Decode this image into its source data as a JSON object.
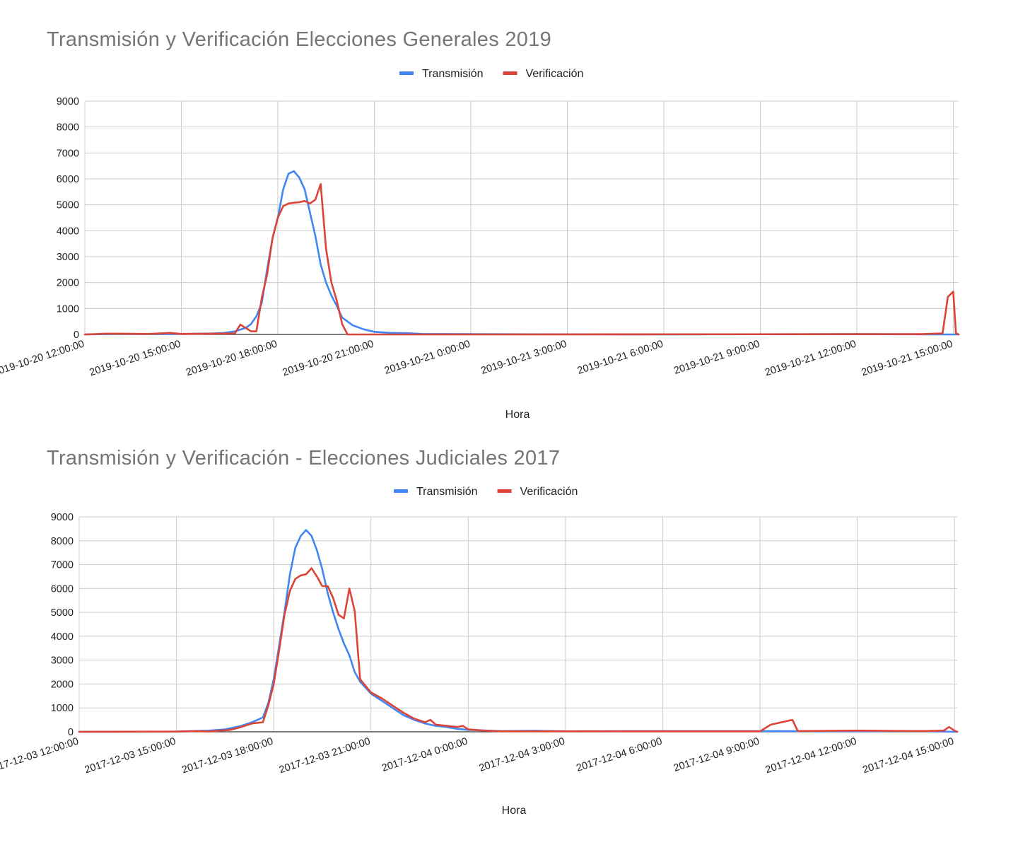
{
  "colors": {
    "transmision": "#4285F4",
    "verificacion": "#DB4437",
    "grid": "#CCCCCC",
    "axis": "#333333"
  },
  "chart_data": [
    {
      "type": "line",
      "title": "Transmisión y Verificación Elecciones Generales 2019",
      "xlabel": "Hora",
      "ylabel": "",
      "ylim": [
        0,
        9000
      ],
      "yticks": [
        "0",
        "1000",
        "2000",
        "3000",
        "4000",
        "5000",
        "6000",
        "7000",
        "8000",
        "9000"
      ],
      "xticks": [
        "2019-10-20 12:00:00",
        "2019-10-20 15:00:00",
        "2019-10-20 18:00:00",
        "2019-10-20 21:00:00",
        "2019-10-21 0:00:00",
        "2019-10-21 3:00:00",
        "2019-10-21 6:00:00",
        "2019-10-21 9:00:00",
        "2019-10-21 12:00:00",
        "2019-10-21 15:00:00"
      ],
      "xlim": [
        "2019-10-20 12:00:00",
        "2019-10-21 15:10:00"
      ],
      "grid": true,
      "legend_position": "top",
      "series": [
        {
          "name": "Transmisión",
          "color": "#4285F4",
          "points": [
            [
              "2019-10-20 12:00:00",
              0
            ],
            [
              "2019-10-20 13:00:00",
              20
            ],
            [
              "2019-10-20 14:00:00",
              10
            ],
            [
              "2019-10-20 15:00:00",
              20
            ],
            [
              "2019-10-20 16:00:00",
              40
            ],
            [
              "2019-10-20 16:20:00",
              60
            ],
            [
              "2019-10-20 16:40:00",
              120
            ],
            [
              "2019-10-20 17:00:00",
              250
            ],
            [
              "2019-10-20 17:10:00",
              400
            ],
            [
              "2019-10-20 17:20:00",
              700
            ],
            [
              "2019-10-20 17:30:00",
              1200
            ],
            [
              "2019-10-20 17:40:00",
              2500
            ],
            [
              "2019-10-20 17:50:00",
              3700
            ],
            [
              "2019-10-20 18:00:00",
              4500
            ],
            [
              "2019-10-20 18:10:00",
              5600
            ],
            [
              "2019-10-20 18:20:00",
              6200
            ],
            [
              "2019-10-20 18:30:00",
              6300
            ],
            [
              "2019-10-20 18:40:00",
              6050
            ],
            [
              "2019-10-20 18:50:00",
              5600
            ],
            [
              "2019-10-20 19:00:00",
              4700
            ],
            [
              "2019-10-20 19:10:00",
              3800
            ],
            [
              "2019-10-20 19:20:00",
              2700
            ],
            [
              "2019-10-20 19:30:00",
              2000
            ],
            [
              "2019-10-20 19:40:00",
              1500
            ],
            [
              "2019-10-20 19:50:00",
              1100
            ],
            [
              "2019-10-20 20:00:00",
              650
            ],
            [
              "2019-10-20 20:20:00",
              350
            ],
            [
              "2019-10-20 20:40:00",
              200
            ],
            [
              "2019-10-20 21:00:00",
              100
            ],
            [
              "2019-10-20 21:30:00",
              60
            ],
            [
              "2019-10-20 22:00:00",
              50
            ],
            [
              "2019-10-20 22:30:00",
              20
            ],
            [
              "2019-10-21 0:00:00",
              10
            ],
            [
              "2019-10-21 6:00:00",
              0
            ],
            [
              "2019-10-21 12:00:00",
              10
            ],
            [
              "2019-10-21 15:00:00",
              0
            ],
            [
              "2019-10-21 15:10:00",
              0
            ]
          ]
        },
        {
          "name": "Verificación",
          "color": "#DB4437",
          "points": [
            [
              "2019-10-20 12:00:00",
              0
            ],
            [
              "2019-10-20 12:40:00",
              30
            ],
            [
              "2019-10-20 13:00:00",
              30
            ],
            [
              "2019-10-20 14:00:00",
              20
            ],
            [
              "2019-10-20 14:40:00",
              60
            ],
            [
              "2019-10-20 15:00:00",
              20
            ],
            [
              "2019-10-20 16:00:00",
              30
            ],
            [
              "2019-10-20 16:40:00",
              40
            ],
            [
              "2019-10-20 16:50:00",
              380
            ],
            [
              "2019-10-20 17:00:00",
              250
            ],
            [
              "2019-10-20 17:10:00",
              120
            ],
            [
              "2019-10-20 17:20:00",
              120
            ],
            [
              "2019-10-20 17:30:00",
              1400
            ],
            [
              "2019-10-20 17:40:00",
              2300
            ],
            [
              "2019-10-20 17:50:00",
              3700
            ],
            [
              "2019-10-20 18:00:00",
              4500
            ],
            [
              "2019-10-20 18:10:00",
              4950
            ],
            [
              "2019-10-20 18:20:00",
              5050
            ],
            [
              "2019-10-20 18:30:00",
              5080
            ],
            [
              "2019-10-20 18:40:00",
              5100
            ],
            [
              "2019-10-20 18:50:00",
              5150
            ],
            [
              "2019-10-20 19:00:00",
              5050
            ],
            [
              "2019-10-20 19:10:00",
              5200
            ],
            [
              "2019-10-20 19:20:00",
              5800
            ],
            [
              "2019-10-20 19:30:00",
              3300
            ],
            [
              "2019-10-20 19:40:00",
              2000
            ],
            [
              "2019-10-20 19:50:00",
              1300
            ],
            [
              "2019-10-20 20:00:00",
              400
            ],
            [
              "2019-10-20 20:10:00",
              0
            ],
            [
              "2019-10-21 0:00:00",
              0
            ],
            [
              "2019-10-21 12:00:00",
              10
            ],
            [
              "2019-10-21 14:00:00",
              10
            ],
            [
              "2019-10-21 14:40:00",
              40
            ],
            [
              "2019-10-21 14:50:00",
              1450
            ],
            [
              "2019-10-21 15:00:00",
              1650
            ],
            [
              "2019-10-21 15:05:00",
              50
            ],
            [
              "2019-10-21 15:10:00",
              0
            ]
          ]
        }
      ]
    },
    {
      "type": "line",
      "title": "Transmisión y Verificación - Elecciones Judiciales 2017",
      "xlabel": "Hora",
      "ylabel": "",
      "ylim": [
        0,
        9000
      ],
      "yticks": [
        "0",
        "1000",
        "2000",
        "3000",
        "4000",
        "5000",
        "6000",
        "7000",
        "8000",
        "9000"
      ],
      "xticks": [
        "2017-12-03 12:00:00",
        "2017-12-03 15:00:00",
        "2017-12-03 18:00:00",
        "2017-12-03 21:00:00",
        "2017-12-04 0:00:00",
        "2017-12-04 3:00:00",
        "2017-12-04 6:00:00",
        "2017-12-04 9:00:00",
        "2017-12-04 12:00:00",
        "2017-12-04 15:00:00"
      ],
      "xlim": [
        "2017-12-03 12:00:00",
        "2017-12-04 15:05:00"
      ],
      "grid": true,
      "legend_position": "top",
      "series": [
        {
          "name": "Transmisión",
          "color": "#4285F4",
          "points": [
            [
              "2017-12-03 12:00:00",
              0
            ],
            [
              "2017-12-03 15:00:00",
              10
            ],
            [
              "2017-12-03 16:00:00",
              50
            ],
            [
              "2017-12-03 16:30:00",
              100
            ],
            [
              "2017-12-03 17:00:00",
              250
            ],
            [
              "2017-12-03 17:20:00",
              400
            ],
            [
              "2017-12-03 17:40:00",
              600
            ],
            [
              "2017-12-03 17:50:00",
              1200
            ],
            [
              "2017-12-03 18:00:00",
              2200
            ],
            [
              "2017-12-03 18:10:00",
              3600
            ],
            [
              "2017-12-03 18:20:00",
              5000
            ],
            [
              "2017-12-03 18:30:00",
              6600
            ],
            [
              "2017-12-03 18:40:00",
              7700
            ],
            [
              "2017-12-03 18:50:00",
              8200
            ],
            [
              "2017-12-03 19:00:00",
              8450
            ],
            [
              "2017-12-03 19:10:00",
              8200
            ],
            [
              "2017-12-03 19:20:00",
              7600
            ],
            [
              "2017-12-03 19:30:00",
              6800
            ],
            [
              "2017-12-03 19:40:00",
              5800
            ],
            [
              "2017-12-03 19:50:00",
              5000
            ],
            [
              "2017-12-03 20:00:00",
              4300
            ],
            [
              "2017-12-03 20:10:00",
              3700
            ],
            [
              "2017-12-03 20:20:00",
              3200
            ],
            [
              "2017-12-03 20:30:00",
              2500
            ],
            [
              "2017-12-03 20:40:00",
              2100
            ],
            [
              "2017-12-03 21:00:00",
              1600
            ],
            [
              "2017-12-03 21:20:00",
              1300
            ],
            [
              "2017-12-03 21:40:00",
              1000
            ],
            [
              "2017-12-03 22:00:00",
              700
            ],
            [
              "2017-12-03 22:20:00",
              500
            ],
            [
              "2017-12-03 22:40:00",
              350
            ],
            [
              "2017-12-03 23:00:00",
              250
            ],
            [
              "2017-12-03 23:20:00",
              200
            ],
            [
              "2017-12-03 23:40:00",
              120
            ],
            [
              "2017-12-04 0:00:00",
              80
            ],
            [
              "2017-12-04 0:30:00",
              60
            ],
            [
              "2017-12-04 1:00:00",
              30
            ],
            [
              "2017-12-04 2:00:00",
              40
            ],
            [
              "2017-12-04 3:00:00",
              20
            ],
            [
              "2017-12-04 6:00:00",
              30
            ],
            [
              "2017-12-04 9:00:00",
              30
            ],
            [
              "2017-12-04 12:00:00",
              20
            ],
            [
              "2017-12-04 14:00:00",
              30
            ],
            [
              "2017-12-04 15:00:00",
              0
            ],
            [
              "2017-12-04 15:05:00",
              0
            ]
          ]
        },
        {
          "name": "Verificación",
          "color": "#DB4437",
          "points": [
            [
              "2017-12-03 12:00:00",
              0
            ],
            [
              "2017-12-03 15:00:00",
              10
            ],
            [
              "2017-12-03 15:40:00",
              30
            ],
            [
              "2017-12-03 16:00:00",
              10
            ],
            [
              "2017-12-03 16:20:00",
              50
            ],
            [
              "2017-12-03 16:40:00",
              80
            ],
            [
              "2017-12-03 17:00:00",
              200
            ],
            [
              "2017-12-03 17:20:00",
              350
            ],
            [
              "2017-12-03 17:40:00",
              400
            ],
            [
              "2017-12-03 17:50:00",
              1100
            ],
            [
              "2017-12-03 18:00:00",
              2000
            ],
            [
              "2017-12-03 18:10:00",
              3400
            ],
            [
              "2017-12-03 18:20:00",
              4900
            ],
            [
              "2017-12-03 18:30:00",
              5900
            ],
            [
              "2017-12-03 18:40:00",
              6400
            ],
            [
              "2017-12-03 18:50:00",
              6550
            ],
            [
              "2017-12-03 19:00:00",
              6600
            ],
            [
              "2017-12-03 19:10:00",
              6850
            ],
            [
              "2017-12-03 19:20:00",
              6500
            ],
            [
              "2017-12-03 19:30:00",
              6100
            ],
            [
              "2017-12-03 19:40:00",
              6100
            ],
            [
              "2017-12-03 19:50:00",
              5600
            ],
            [
              "2017-12-03 20:00:00",
              4900
            ],
            [
              "2017-12-03 20:10:00",
              4750
            ],
            [
              "2017-12-03 20:20:00",
              6000
            ],
            [
              "2017-12-03 20:30:00",
              5050
            ],
            [
              "2017-12-03 20:40:00",
              2200
            ],
            [
              "2017-12-03 21:00:00",
              1650
            ],
            [
              "2017-12-03 21:20:00",
              1400
            ],
            [
              "2017-12-03 21:40:00",
              1100
            ],
            [
              "2017-12-03 22:00:00",
              800
            ],
            [
              "2017-12-03 22:20:00",
              550
            ],
            [
              "2017-12-03 22:40:00",
              400
            ],
            [
              "2017-12-03 22:50:00",
              500
            ],
            [
              "2017-12-03 23:00:00",
              300
            ],
            [
              "2017-12-03 23:20:00",
              250
            ],
            [
              "2017-12-03 23:40:00",
              200
            ],
            [
              "2017-12-03 23:50:00",
              250
            ],
            [
              "2017-12-04 0:00:00",
              100
            ],
            [
              "2017-12-04 0:30:00",
              50
            ],
            [
              "2017-12-04 1:00:00",
              20
            ],
            [
              "2017-12-04 3:00:00",
              20
            ],
            [
              "2017-12-04 6:00:00",
              20
            ],
            [
              "2017-12-04 9:00:00",
              20
            ],
            [
              "2017-12-04 9:20:00",
              300
            ],
            [
              "2017-12-04 9:40:00",
              400
            ],
            [
              "2017-12-04 10:00:00",
              500
            ],
            [
              "2017-12-04 10:10:00",
              30
            ],
            [
              "2017-12-04 12:00:00",
              50
            ],
            [
              "2017-12-04 14:00:00",
              30
            ],
            [
              "2017-12-04 14:40:00",
              50
            ],
            [
              "2017-12-04 14:50:00",
              200
            ],
            [
              "2017-12-04 15:00:00",
              50
            ],
            [
              "2017-12-04 15:05:00",
              0
            ]
          ]
        }
      ]
    }
  ]
}
